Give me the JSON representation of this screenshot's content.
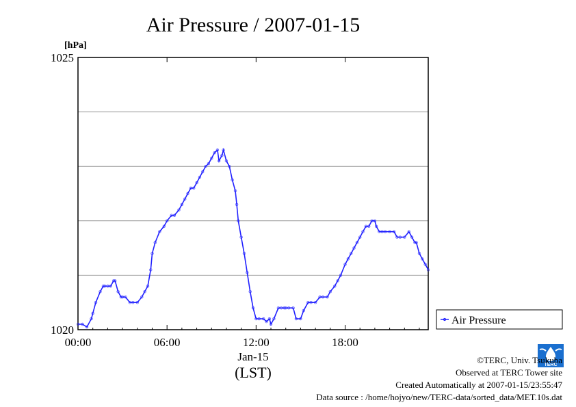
{
  "chart_data": {
    "type": "line",
    "title": "Air Pressure / 2007-01-15",
    "ylabel": "[hPa]",
    "ylim": [
      1020,
      1025
    ],
    "y_ticks": [
      "1025",
      "1020"
    ],
    "y_gridlines": [
      1021,
      1022,
      1023,
      1024
    ],
    "xlim": [
      0,
      23.6
    ],
    "x_ticks": [
      "00:00",
      "06:00",
      "12:00",
      "18:00"
    ],
    "x_tick_hours": [
      0,
      6,
      12,
      18
    ],
    "date_label": "Jan-15",
    "xlabel": "(LST)",
    "grid": "horizontal",
    "legend": "right",
    "series": [
      {
        "name": "Air Pressure",
        "color": "#2020ff",
        "x_unit": "hour",
        "x": [
          0.0,
          0.3,
          0.6,
          0.9,
          1.0,
          1.2,
          1.5,
          1.7,
          1.8,
          2.0,
          2.2,
          2.4,
          2.5,
          2.7,
          2.9,
          3.0,
          3.2,
          3.5,
          3.7,
          4.0,
          4.3,
          4.5,
          4.7,
          4.9,
          5.0,
          5.2,
          5.5,
          5.8,
          6.0,
          6.3,
          6.5,
          6.8,
          7.0,
          7.2,
          7.4,
          7.6,
          7.8,
          8.0,
          8.2,
          8.4,
          8.6,
          8.8,
          9.0,
          9.2,
          9.4,
          9.5,
          9.7,
          9.8,
          10.0,
          10.2,
          10.4,
          10.6,
          10.7,
          10.8,
          11.0,
          11.2,
          11.4,
          11.6,
          11.8,
          12.0,
          12.2,
          12.5,
          12.7,
          12.9,
          13.0,
          13.2,
          13.5,
          13.7,
          13.9,
          14.0,
          14.2,
          14.5,
          14.7,
          15.0,
          15.2,
          15.5,
          15.7,
          16.0,
          16.3,
          16.5,
          16.8,
          17.0,
          17.3,
          17.5,
          17.7,
          18.0,
          18.2,
          18.4,
          18.6,
          18.8,
          19.0,
          19.2,
          19.4,
          19.6,
          19.8,
          20.0,
          20.1,
          20.3,
          20.5,
          20.7,
          21.0,
          21.3,
          21.5,
          21.7,
          22.0,
          22.3,
          22.5,
          22.7,
          22.8,
          23.0,
          23.2,
          23.4,
          23.6
        ],
        "y": [
          1020.1,
          1020.1,
          1020.05,
          1020.2,
          1020.3,
          1020.5,
          1020.7,
          1020.8,
          1020.8,
          1020.8,
          1020.8,
          1020.9,
          1020.9,
          1020.7,
          1020.6,
          1020.6,
          1020.6,
          1020.5,
          1020.5,
          1020.5,
          1020.6,
          1020.7,
          1020.8,
          1021.1,
          1021.4,
          1021.6,
          1021.8,
          1021.9,
          1022.0,
          1022.1,
          1022.1,
          1022.2,
          1022.3,
          1022.4,
          1022.5,
          1022.6,
          1022.6,
          1022.7,
          1022.8,
          1022.9,
          1023.0,
          1023.05,
          1023.15,
          1023.25,
          1023.3,
          1023.1,
          1023.2,
          1023.3,
          1023.1,
          1023.0,
          1022.75,
          1022.55,
          1022.3,
          1022.0,
          1021.7,
          1021.4,
          1021.05,
          1020.7,
          1020.4,
          1020.2,
          1020.2,
          1020.2,
          1020.15,
          1020.2,
          1020.1,
          1020.2,
          1020.4,
          1020.4,
          1020.4,
          1020.4,
          1020.4,
          1020.4,
          1020.2,
          1020.2,
          1020.35,
          1020.5,
          1020.5,
          1020.5,
          1020.6,
          1020.6,
          1020.6,
          1020.7,
          1020.8,
          1020.9,
          1021.0,
          1021.2,
          1021.3,
          1021.4,
          1021.5,
          1021.6,
          1021.7,
          1021.8,
          1021.9,
          1021.9,
          1022.0,
          1022.0,
          1021.9,
          1021.8,
          1021.8,
          1021.8,
          1021.8,
          1021.8,
          1021.7,
          1021.7,
          1021.7,
          1021.8,
          1021.7,
          1021.6,
          1021.6,
          1021.4,
          1021.3,
          1021.2,
          1021.1
        ]
      }
    ]
  },
  "credits": {
    "copyright": "©TERC, Univ. Tsukuba",
    "observed": "Observed at TERC Tower site",
    "created": "Created Automatically at 2007-01-15/23:55:47",
    "source": "Data source : /home/hojyo/new/TERC-data/sorted_data/MET.10s.dat"
  },
  "logo": {
    "name": "TERC logo",
    "text": "TERC",
    "color": "#1a6fcf"
  }
}
